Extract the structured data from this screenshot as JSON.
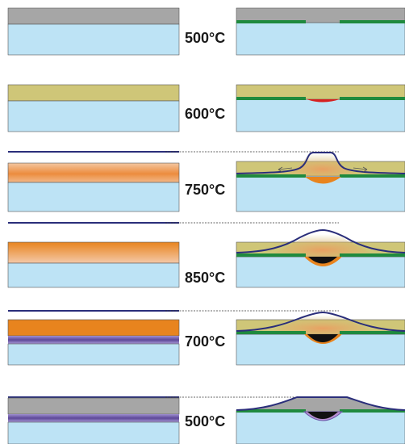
{
  "colors": {
    "substrate": "#bde3f5",
    "gray_layer": "#a6a6a6",
    "olive_layer": "#cfc678",
    "orange": "#e8841e",
    "green": "#1f8a3e",
    "red": "#d62020",
    "navy": "#2a2e7a",
    "black": "#111111",
    "purple": "#6b57a8",
    "edge": "#555555"
  },
  "steps": [
    {
      "temperature": "500°C"
    },
    {
      "temperature": "600°C"
    },
    {
      "temperature": "750°C"
    },
    {
      "temperature": "850°C"
    },
    {
      "temperature": "700°C"
    },
    {
      "temperature": "500°C"
    }
  ]
}
